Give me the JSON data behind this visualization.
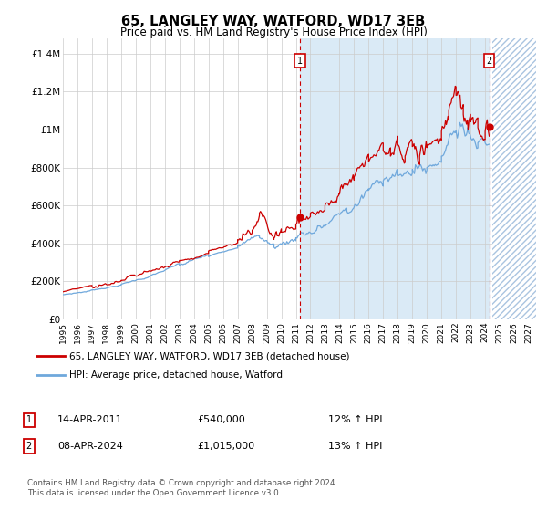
{
  "title": "65, LANGLEY WAY, WATFORD, WD17 3EB",
  "subtitle": "Price paid vs. HM Land Registry's House Price Index (HPI)",
  "ylabel_ticks": [
    "£0",
    "£200K",
    "£400K",
    "£600K",
    "£800K",
    "£1M",
    "£1.2M",
    "£1.4M"
  ],
  "ytick_values": [
    0,
    200000,
    400000,
    600000,
    800000,
    1000000,
    1200000,
    1400000
  ],
  "ylim": [
    0,
    1480000
  ],
  "xlim_start": 1995.0,
  "xlim_end": 2027.5,
  "xtick_years": [
    1995,
    1996,
    1997,
    1998,
    1999,
    2000,
    2001,
    2002,
    2003,
    2004,
    2005,
    2006,
    2007,
    2008,
    2009,
    2010,
    2011,
    2012,
    2013,
    2014,
    2015,
    2016,
    2017,
    2018,
    2019,
    2020,
    2021,
    2022,
    2023,
    2024,
    2025,
    2026,
    2027
  ],
  "hpi_color": "#6fa8dc",
  "price_color": "#cc0000",
  "marker1_year": 2011.29,
  "marker1_value": 540000,
  "marker2_year": 2024.28,
  "marker2_value": 1015000,
  "shade_start": 2011.29,
  "shade_end": 2024.28,
  "future_start": 2024.5,
  "legend_label1": "65, LANGLEY WAY, WATFORD, WD17 3EB (detached house)",
  "legend_label2": "HPI: Average price, detached house, Watford",
  "annotation1_label": "1",
  "annotation1_date": "14-APR-2011",
  "annotation1_price": "£540,000",
  "annotation1_hpi": "12% ↑ HPI",
  "annotation2_label": "2",
  "annotation2_date": "08-APR-2024",
  "annotation2_price": "£1,015,000",
  "annotation2_hpi": "13% ↑ HPI",
  "footer": "Contains HM Land Registry data © Crown copyright and database right 2024.\nThis data is licensed under the Open Government Licence v3.0.",
  "background_color": "#ffffff",
  "plot_bg_color": "#ffffff",
  "shade_color": "#daeaf6",
  "hatch_color": "#aac4e0",
  "grid_color": "#cccccc"
}
